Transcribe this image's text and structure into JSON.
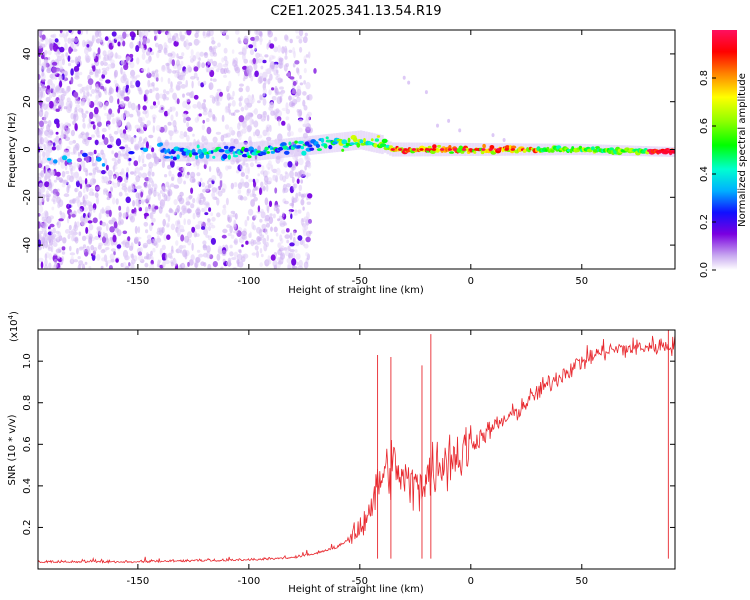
{
  "title": "C2E1.2025.341.13.54.R19",
  "chart_data": [
    {
      "type": "heatmap",
      "xlabel": "Height of straight line (km)",
      "ylabel": "Frequency (Hz)",
      "xlim": [
        -195,
        92
      ],
      "ylim": [
        -50,
        50
      ],
      "xticks": [
        -150,
        -100,
        -50,
        0,
        50
      ],
      "yticks": [
        -40,
        -20,
        0,
        20,
        40
      ],
      "colorbar": {
        "label": "Normalized spectral amplitude",
        "range": [
          0,
          1
        ],
        "ticks": [
          "0.0",
          "0.2",
          "0.4",
          "0.6",
          "0.8"
        ],
        "colors": [
          "#ffffff",
          "#c8a8f0",
          "#7a00e0",
          "#1010ff",
          "#00b0ff",
          "#00ffd0",
          "#00ff00",
          "#90ff00",
          "#ffff00",
          "#ff8000",
          "#ff0000",
          "#ff1060"
        ]
      },
      "ridge": {
        "description_points_km": [
          -190,
          -150,
          -140,
          -100,
          -80,
          -60,
          -50,
          -40,
          -36,
          -30,
          0,
          50,
          90
        ],
        "center_hz": [
          -3,
          -2,
          -1,
          -1,
          1,
          3,
          4,
          2,
          0,
          0,
          0,
          0,
          -1
        ]
      }
    },
    {
      "type": "line",
      "xlabel": "Height of straight line (km)",
      "ylabel": "SNR (10 * v/v)",
      "yscale_label": "(x10",
      "yscale_exp": "4",
      "xlim": [
        -195,
        92
      ],
      "ylim": [
        0,
        1.15
      ],
      "xticks": [
        -150,
        -100,
        -50,
        0,
        50
      ],
      "yticks": [
        "0.2",
        "0.4",
        "0.6",
        "0.8",
        "1.0"
      ],
      "color": "#e8282e",
      "series": [
        {
          "name": "SNR",
          "x": [
            -195,
            -150,
            -100,
            -80,
            -70,
            -60,
            -55,
            -50,
            -45,
            -40,
            -35,
            -30,
            -25,
            -20,
            -15,
            -10,
            -5,
            0,
            10,
            20,
            30,
            40,
            50,
            60,
            70,
            80,
            92
          ],
          "y": [
            0.03,
            0.03,
            0.04,
            0.05,
            0.07,
            0.1,
            0.14,
            0.2,
            0.3,
            0.45,
            0.5,
            0.42,
            0.4,
            0.44,
            0.5,
            0.55,
            0.55,
            0.6,
            0.68,
            0.75,
            0.85,
            0.93,
            1.0,
            1.05,
            1.06,
            1.07,
            1.08
          ]
        }
      ],
      "spikes": [
        {
          "x": -42,
          "y": 1.03
        },
        {
          "x": -36,
          "y": 1.02
        },
        {
          "x": -18,
          "y": 1.13
        },
        {
          "x": -22,
          "y": 0.98
        },
        {
          "x": 89,
          "y": 1.16
        }
      ]
    }
  ]
}
